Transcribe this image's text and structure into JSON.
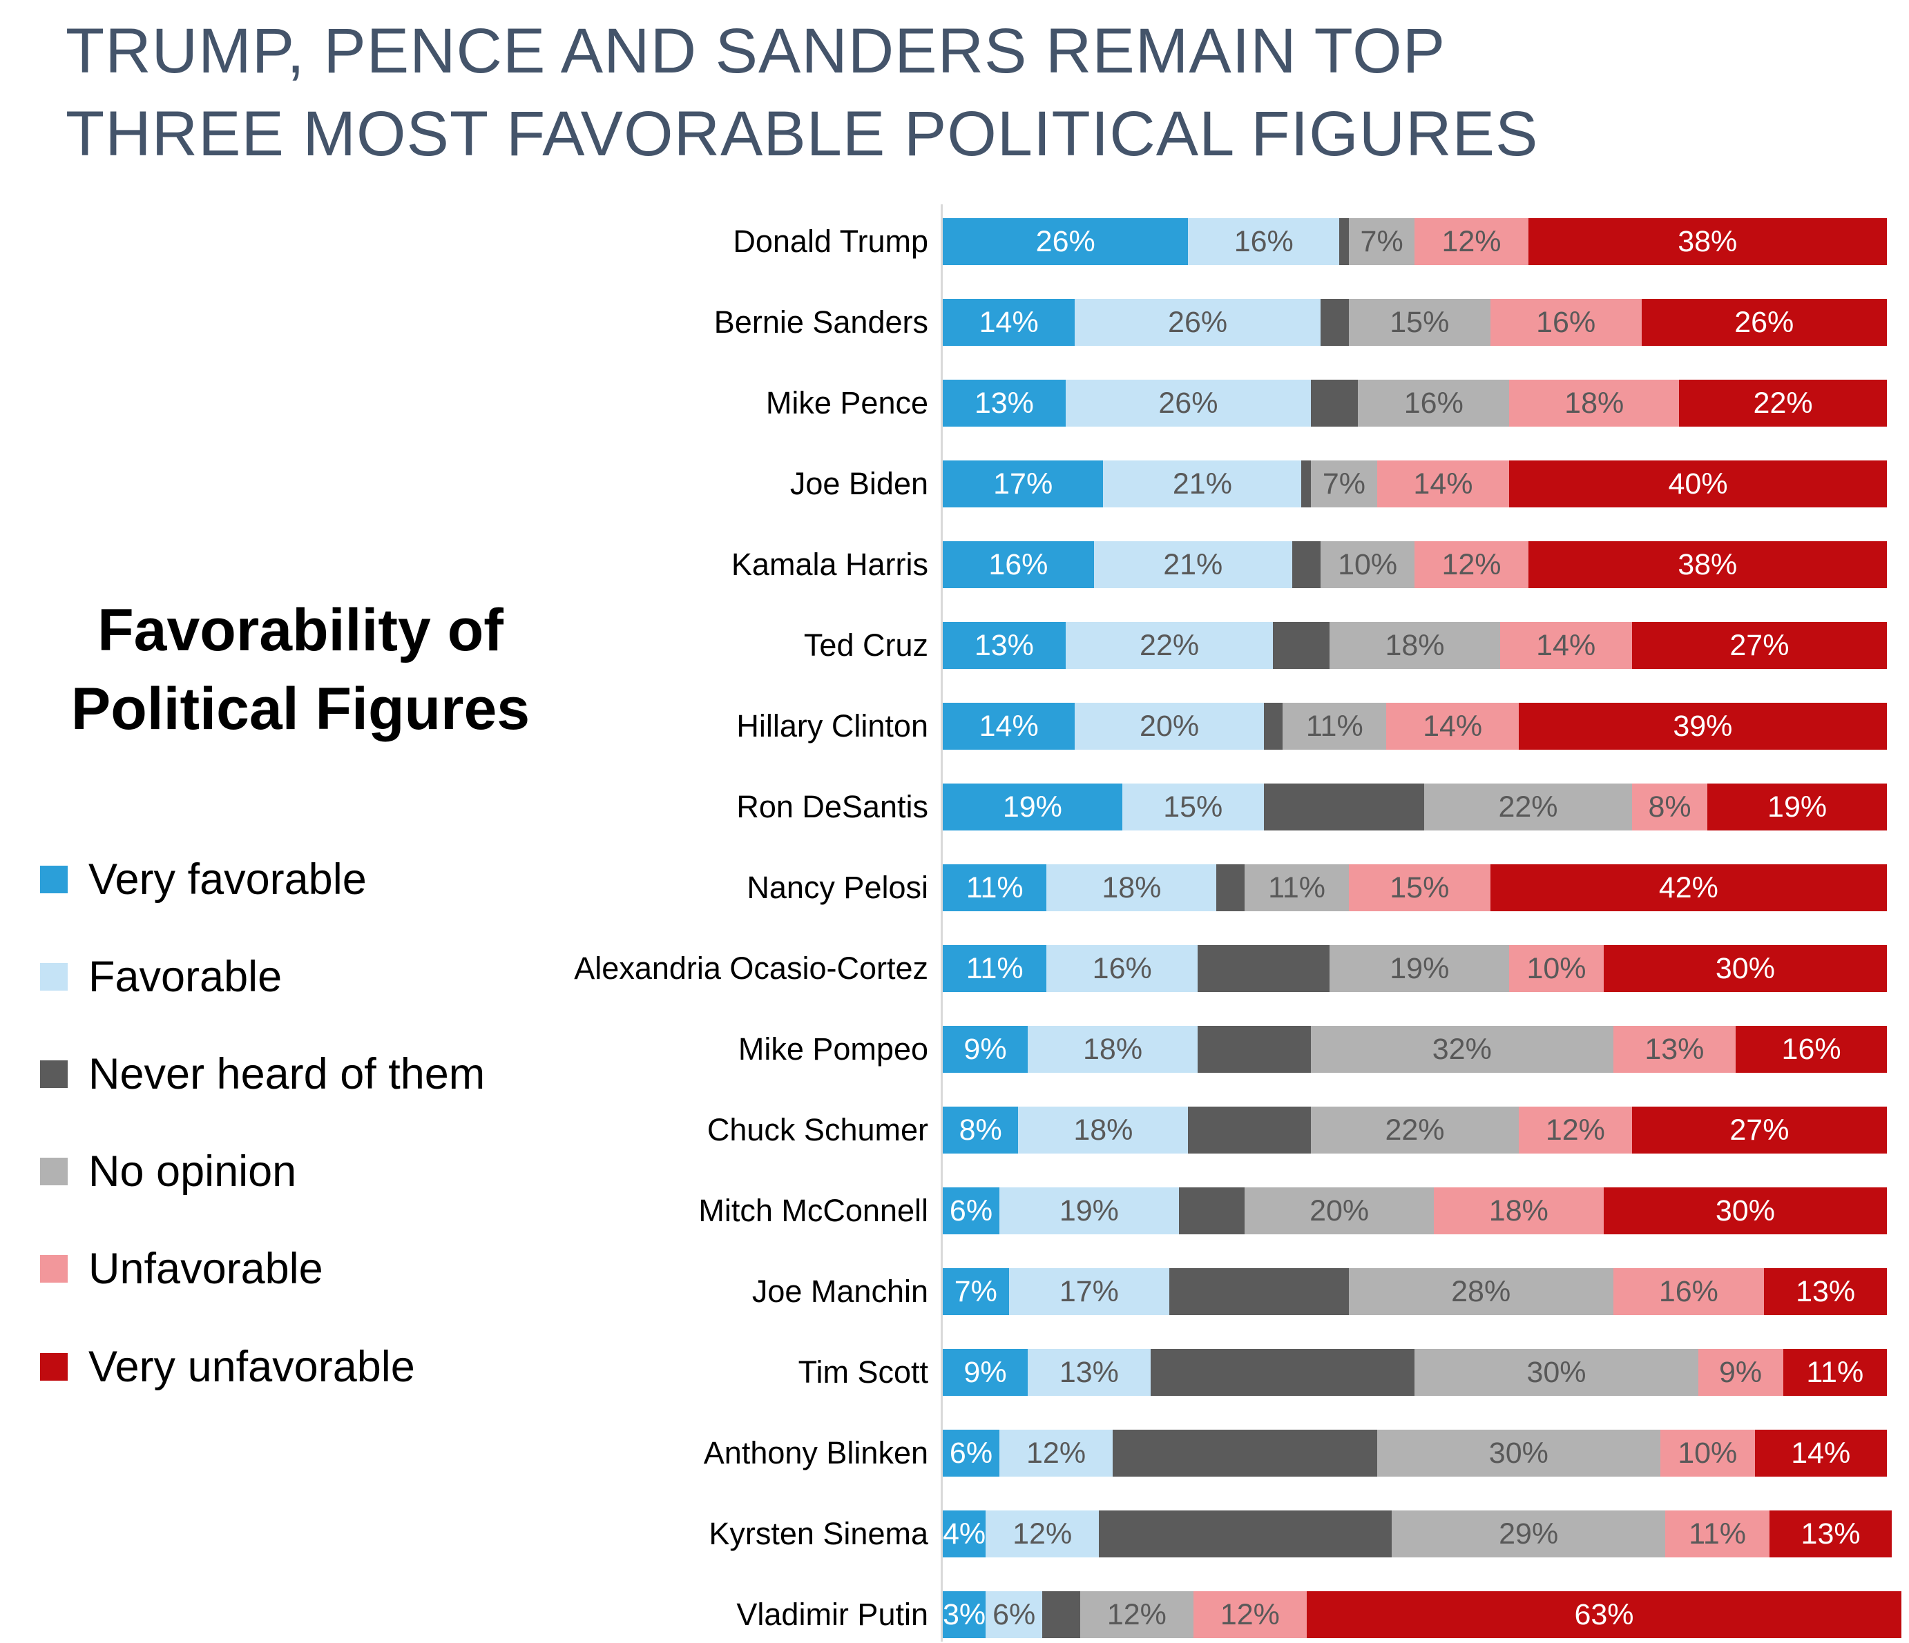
{
  "title": {
    "line1": "TRUMP, PENCE AND SANDERS REMAIN TOP",
    "line2": "THREE MOST FAVORABLE POLITICAL FIGURES"
  },
  "side_heading": {
    "line1": "Favorability of",
    "line2": "Political Figures"
  },
  "legend": [
    {
      "label": "Very favorable",
      "color": "#2B9FD9"
    },
    {
      "label": "Favorable",
      "color": "#C5E3F6"
    },
    {
      "label": "Never heard of them",
      "color": "#5B5B5B"
    },
    {
      "label": "No opinion",
      "color": "#B2B2B2"
    },
    {
      "label": "Unfavorable",
      "color": "#F2979B"
    },
    {
      "label": "Very unfavorable",
      "color": "#C00B0F"
    }
  ],
  "chart_data": {
    "type": "bar",
    "stacked": true,
    "orientation": "horizontal",
    "value_suffix": "%",
    "axis_range": [
      0,
      100
    ],
    "grid": false,
    "legend_position": "left",
    "categories": [
      "Donald Trump",
      "Bernie Sanders",
      "Mike Pence",
      "Joe Biden",
      "Kamala Harris",
      "Ted Cruz",
      "Hillary Clinton",
      "Ron DeSantis",
      "Nancy Pelosi",
      "Alexandria Ocasio-Cortez",
      "Mike Pompeo",
      "Chuck Schumer",
      "Mitch McConnell",
      "Joe Manchin",
      "Tim Scott",
      "Anthony Blinken",
      "Kyrsten Sinema",
      "Vladimir Putin"
    ],
    "series": [
      {
        "name": "Very favorable",
        "color": "#2B9FD9",
        "label_color": "#FFFFFF",
        "show_labels": true,
        "values": [
          26,
          14,
          13,
          17,
          16,
          13,
          14,
          19,
          11,
          11,
          9,
          8,
          6,
          7,
          9,
          6,
          4,
          3
        ]
      },
      {
        "name": "Favorable",
        "color": "#C5E3F6",
        "label_color": "#595959",
        "show_labels": true,
        "values": [
          16,
          26,
          26,
          21,
          21,
          22,
          20,
          15,
          18,
          16,
          18,
          18,
          19,
          17,
          13,
          12,
          12,
          6
        ]
      },
      {
        "name": "Never heard of them",
        "color": "#5B5B5B",
        "label_color": "#FFFFFF",
        "show_labels": false,
        "values": [
          1,
          3,
          5,
          1,
          3,
          6,
          2,
          17,
          3,
          14,
          12,
          13,
          7,
          19,
          28,
          28,
          31,
          4
        ]
      },
      {
        "name": "No opinion",
        "color": "#B2B2B2",
        "label_color": "#595959",
        "show_labels": true,
        "values": [
          7,
          15,
          16,
          7,
          10,
          18,
          11,
          22,
          11,
          19,
          32,
          22,
          20,
          28,
          30,
          30,
          29,
          12
        ]
      },
      {
        "name": "Unfavorable",
        "color": "#F2979B",
        "label_color": "#595959",
        "show_labels": true,
        "values": [
          12,
          16,
          18,
          14,
          12,
          14,
          14,
          8,
          15,
          10,
          13,
          12,
          18,
          16,
          9,
          10,
          11,
          12
        ]
      },
      {
        "name": "Very unfavorable",
        "color": "#C00B0F",
        "label_color": "#FFFFFF",
        "show_labels": true,
        "values": [
          38,
          26,
          22,
          40,
          38,
          27,
          39,
          19,
          42,
          30,
          16,
          27,
          30,
          13,
          11,
          14,
          13,
          63
        ]
      }
    ]
  }
}
